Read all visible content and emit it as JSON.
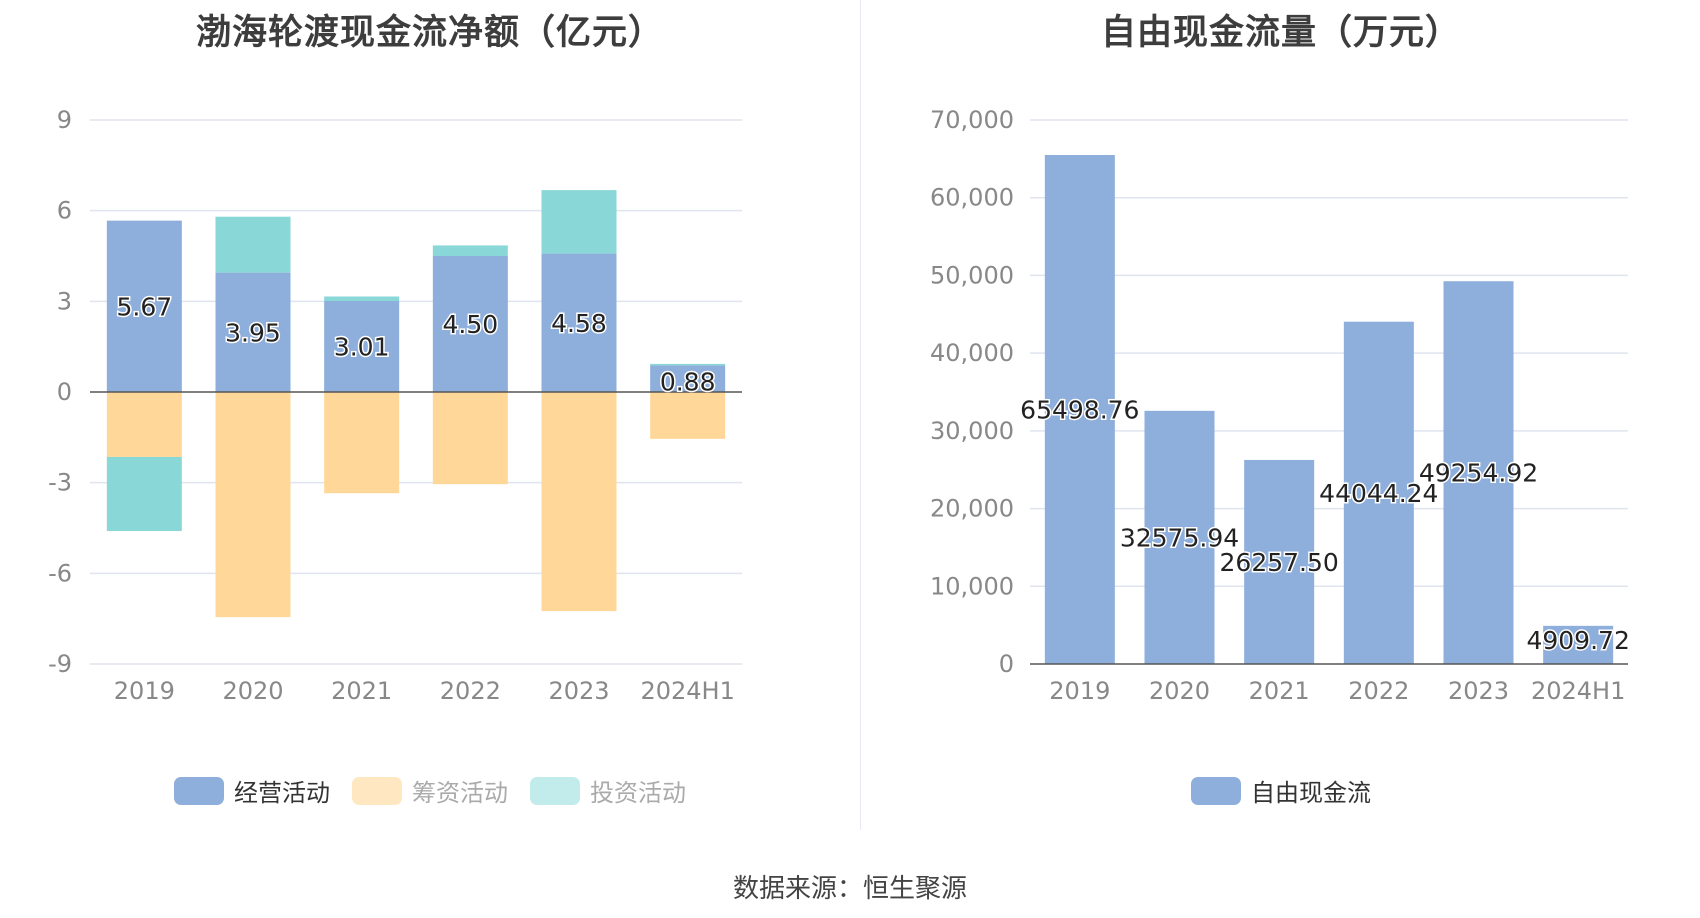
{
  "colors": {
    "operating": "#8eaedb",
    "financing": "#ffd899",
    "investing": "#8ad7d8",
    "fcf": "#8eaedb",
    "grid": "#e0e4ef",
    "axis": "#555555"
  },
  "chart_data": [
    {
      "type": "bar",
      "stacked": true,
      "title": "渤海轮渡现金流净额（亿元）",
      "categories": [
        "2019",
        "2020",
        "2021",
        "2022",
        "2023",
        "2024H1"
      ],
      "ylim": [
        -9,
        9
      ],
      "yticks": [
        "9",
        "6",
        "3",
        "0",
        "-3",
        "-6",
        "-9"
      ],
      "ytick_values": [
        9,
        6,
        3,
        0,
        -3,
        -6,
        -9
      ],
      "grid": true,
      "legend_position": "bottom",
      "series": [
        {
          "name": "经营活动",
          "color": "#8eaedb",
          "values": [
            5.67,
            3.95,
            3.01,
            4.5,
            4.58,
            0.88
          ],
          "labels": [
            "5.67",
            "3.95",
            "3.01",
            "4.50",
            "4.58",
            "0.88"
          ]
        },
        {
          "name": "筹资活动",
          "color": "#ffd899",
          "values": [
            -2.15,
            -7.45,
            -3.35,
            -3.05,
            -7.25,
            -1.55
          ]
        },
        {
          "name": "投资活动",
          "color": "#8ad7d8",
          "values": [
            -2.45,
            1.85,
            0.15,
            0.35,
            2.1,
            0.05
          ]
        }
      ]
    },
    {
      "type": "bar",
      "title": "自由现金流量（万元）",
      "categories": [
        "2019",
        "2020",
        "2021",
        "2022",
        "2023",
        "2024H1"
      ],
      "ylim": [
        0,
        70000
      ],
      "yticks": [
        "70,000",
        "60,000",
        "50,000",
        "40,000",
        "30,000",
        "20,000",
        "10,000",
        "0"
      ],
      "ytick_values": [
        70000,
        60000,
        50000,
        40000,
        30000,
        20000,
        10000,
        0
      ],
      "grid": true,
      "legend_position": "bottom",
      "series": [
        {
          "name": "自由现金流",
          "color": "#8eaedb",
          "values": [
            65498.76,
            32575.94,
            26257.5,
            44044.24,
            49254.92,
            4909.72
          ],
          "labels": [
            "65498.76",
            "32575.94",
            "26257.50",
            "44044.24",
            "49254.92",
            "4909.72"
          ]
        }
      ]
    }
  ],
  "legend_left": [
    {
      "label": "经营活动",
      "color": "#8eaedb",
      "text_color": "#333333"
    },
    {
      "label": "筹资活动",
      "color": "#ffe7c2",
      "text_color": "#aaaaaa"
    },
    {
      "label": "投资活动",
      "color": "#c2ecec",
      "text_color": "#aaaaaa"
    }
  ],
  "legend_right": [
    {
      "label": "自由现金流",
      "color": "#8eaedb",
      "text_color": "#333333"
    }
  ],
  "source_text": "数据来源：恒生聚源"
}
